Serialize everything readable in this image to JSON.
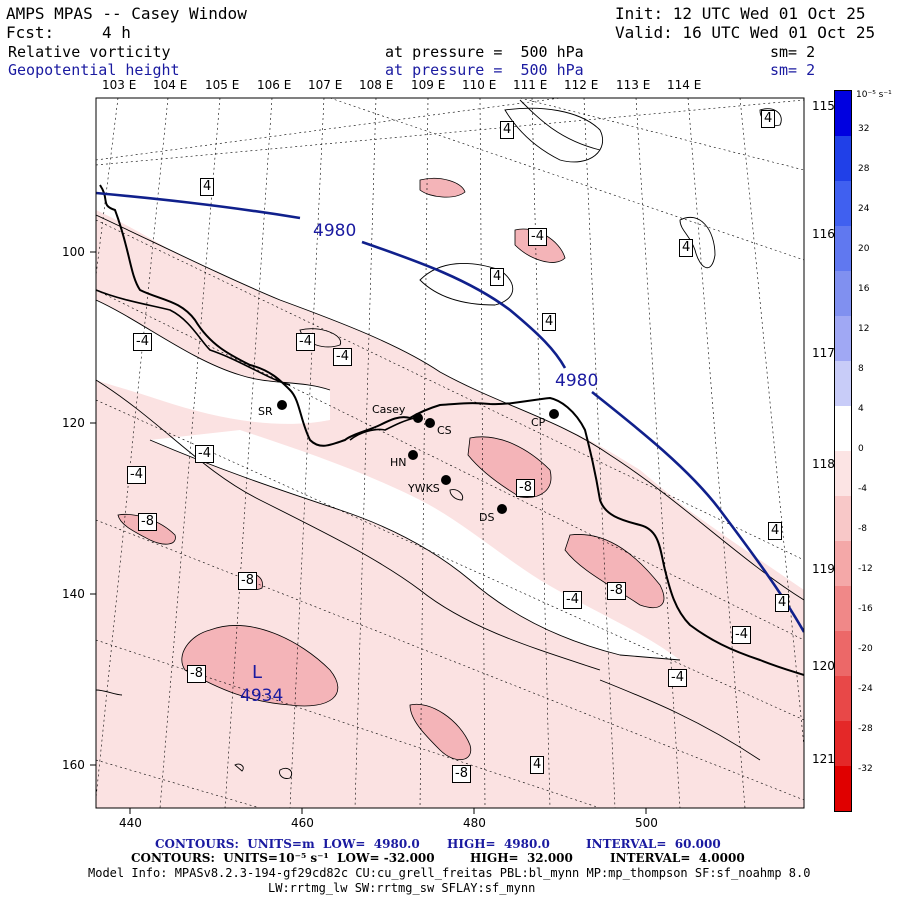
{
  "header": {
    "title": "AMPS MPAS -- Casey Window",
    "init": "Init: 12 UTC Wed 01 Oct 25",
    "fcst_label": "Fcst:",
    "fcst_value": "4 h",
    "valid": "Valid: 16 UTC Wed 01 Oct 25",
    "field1": {
      "name": "Relative vorticity",
      "level": "at pressure =  500 hPa",
      "sm": "sm= 2"
    },
    "field2": {
      "name": "Geopotential height",
      "level": "at pressure =  500 hPa",
      "sm": "sm= 2"
    }
  },
  "lon_labels": [
    "103 E",
    "104 E",
    "105 E",
    "106 E",
    "107 E",
    "108 E",
    "109 E",
    "110 E",
    "111 E",
    "112 E",
    "113 E",
    "114 E"
  ],
  "right_lon_labels": [
    "115 E",
    "116 E",
    "117 E",
    "118 E",
    "119 E",
    "120 E",
    "121 E"
  ],
  "x_ticks": [
    "440",
    "460",
    "480",
    "500"
  ],
  "y_ticks": [
    "100",
    "120",
    "140",
    "160"
  ],
  "stations": [
    {
      "id": "SR"
    },
    {
      "id": "Casey"
    },
    {
      "id": "CS"
    },
    {
      "id": "HN"
    },
    {
      "id": "YWKS"
    },
    {
      "id": "DS"
    },
    {
      "id": "CP"
    }
  ],
  "contour_labels": [
    "4",
    "4",
    "4",
    "4",
    "-4",
    "4",
    "4",
    "-4",
    "-4",
    "-4",
    "-4",
    "-8",
    "-8",
    "-8",
    "-4",
    "-8",
    "-4",
    "-4",
    "-8",
    "-8",
    "-4",
    "4",
    "4",
    "4"
  ],
  "height_labels": [
    "4980",
    "4980"
  ],
  "low": {
    "symbol": "L",
    "value": "4934"
  },
  "colorbar": {
    "unit": "10⁻⁵ s⁻¹",
    "ticks": [
      "32",
      "28",
      "24",
      "20",
      "16",
      "12",
      "8",
      "4",
      "0",
      "-4",
      "-8",
      "-12",
      "-16",
      "-20",
      "-24",
      "-28",
      "-32"
    ],
    "colors": [
      "#0000e0",
      "#2040e8",
      "#4060f0",
      "#6078f0",
      "#8090f0",
      "#a0a8f4",
      "#c8ccf8",
      "#ffffff",
      "#ffffff",
      "#fce4e4",
      "#f8c8c8",
      "#f4a8a8",
      "#f08888",
      "#ec6868",
      "#e84848",
      "#e42828",
      "#e00000"
    ]
  },
  "footer": {
    "line1_units": "CONTOURS:  UNITS=m  LOW=  4980.0",
    "line1_high": "HIGH=  4980.0",
    "line1_int": "INTERVAL=  60.000",
    "line2_units": "CONTOURS:  UNITS=10⁻⁵ s⁻¹  LOW= -32.000",
    "line2_high": "HIGH=  32.000",
    "line2_int": "INTERVAL=  4.0000",
    "model_info": "Model Info: MPASv8.2.3-194-gf29cd82c CU:cu_grell_freitas PBL:bl_mynn MP:mp_thompson SF:sf_noahmp 8.0",
    "model_info2": "LW:rrtmg_lw SW:rrtmg_sw SFLAY:sf_mynn"
  }
}
